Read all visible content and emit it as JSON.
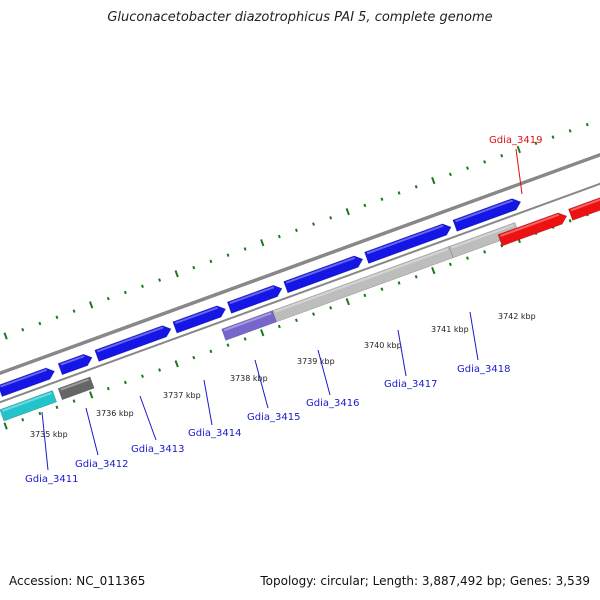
{
  "title": "Gluconacetobacter diazotrophicus PAI 5, complete genome",
  "footer": {
    "accession": "Accession: NC_011365",
    "summary": "Topology: circular; Length: 3,887,492 bp; Genes: 3,539"
  },
  "colors": {
    "backbone": "#888888",
    "tick": "#1a7a1a",
    "gene_blue": "#1515e6",
    "gene_red": "#ee1111",
    "gene_cyan": "#22c4cc",
    "gene_gray": "#666666",
    "gene_lightgray": "#bdbdbd",
    "gene_purple": "#7766cc",
    "label_blue": "#1a1acc",
    "label_red": "#dd1111"
  },
  "scale_labels": [
    "3735 kbp",
    "3736 kbp",
    "3737 kbp",
    "3738 kbp",
    "3739 kbp",
    "3740 kbp",
    "3741 kbp",
    "3742 kbp"
  ],
  "gene_labels": [
    {
      "name": "Gdia_3411",
      "color": "label_blue"
    },
    {
      "name": "Gdia_3412",
      "color": "label_blue"
    },
    {
      "name": "Gdia_3413",
      "color": "label_blue"
    },
    {
      "name": "Gdia_3414",
      "color": "label_blue"
    },
    {
      "name": "Gdia_3415",
      "color": "label_blue"
    },
    {
      "name": "Gdia_3416",
      "color": "label_blue"
    },
    {
      "name": "Gdia_3417",
      "color": "label_blue"
    },
    {
      "name": "Gdia_3418",
      "color": "label_blue"
    },
    {
      "name": "Gdia_3419",
      "color": "label_red"
    }
  ]
}
